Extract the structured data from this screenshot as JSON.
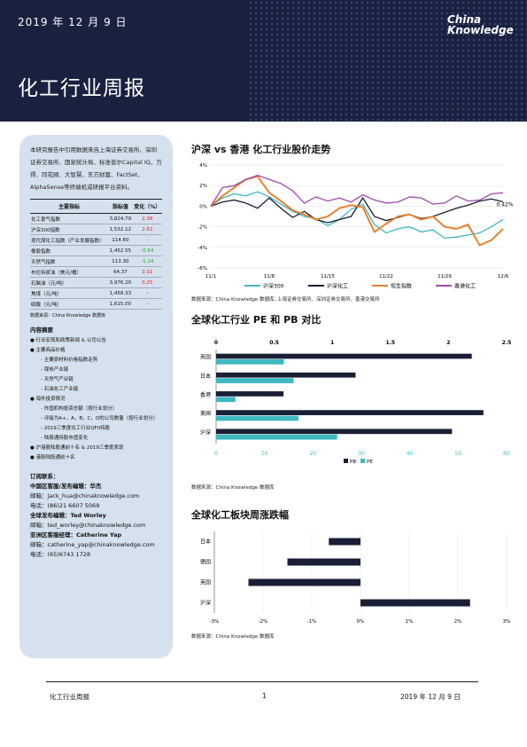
{
  "header": {
    "date": "2019 年 12 月 9 日",
    "title": "化工行业周报",
    "logo_line1": "China",
    "logo_line2": "Knowledge"
  },
  "sidebar": {
    "intro": "本研究报告中引用数据来自上海证券交易所、深圳证券交易所、国家统计局、标准普尔Capital IQ、万得、同花顺、大智慧、东方财富、FactSet、AlphaSense等终端机或研报平台资料。",
    "table_headers": [
      "主要指标",
      "指标值",
      "变化（%）"
    ],
    "table_rows": [
      [
        "化工景气指数",
        "3,824.79",
        "2.38"
      ],
      [
        "沪深300指数",
        "1,532.12",
        "2.62"
      ],
      [
        "现代煤化工指数（产业发展指数）",
        "114.60",
        "-"
      ],
      [
        "橡胶指数",
        "1,452.55",
        "-0.54"
      ],
      [
        "天然气指数",
        "113.30",
        "-1.14"
      ],
      [
        "布伦特原油（美元/桶）",
        "64.37",
        "3.11"
      ],
      [
        "石脑油（元/吨）",
        "3,976.20",
        "0.25"
      ],
      [
        "焦煤（元/吨）",
        "1,458.33",
        "-"
      ],
      [
        "硫酸（元/吨）",
        "1,615.00",
        "-"
      ]
    ],
    "table_source": "数据来源：China Knowledge 数据库",
    "contents_title": "内容摘要",
    "contents": [
      {
        "t": "● 行业宏观和政策新闻 & 公司公告",
        "s": false
      },
      {
        "t": "● 主要商品价格",
        "s": false
      },
      {
        "t": "- 主要原材料价格指数走势",
        "s": true
      },
      {
        "t": "- 煤炭产业链",
        "s": true
      },
      {
        "t": "- 天然气产业链",
        "s": true
      },
      {
        "t": "- 石油化工产业链",
        "s": true
      },
      {
        "t": "● 海外投资情况",
        "s": false
      },
      {
        "t": "- 外国机构投资总额（按行业划分）",
        "s": true
      },
      {
        "t": "- 评级为A+，A，B，C，D的公司数量（按行业划分）",
        "s": true
      },
      {
        "t": "- 2019三季度化工行业QFII持股",
        "s": true
      },
      {
        "t": "- 陆股通持股市值变化",
        "s": true
      },
      {
        "t": "● 沪港股陆股通前十名 & 2019三季度表现",
        "s": false
      },
      {
        "t": "● 港股陆股通前十名",
        "s": false
      }
    ],
    "contact_title": "订阅联系：",
    "contacts": [
      {
        "role": "中国区客服/发布编辑：华杰",
        "email": "邮箱：jack_hua@chinaknowledge.com",
        "phone": "电话：(86)21 6607 5069"
      },
      {
        "role": "全球发布编辑：Ted Worley",
        "email": "邮箱：ted_worley@chinaknowledge.com",
        "phone": ""
      },
      {
        "role": "亚洲区客服经理：Catherine Yap",
        "email": "邮箱：catherine_yap@chinaknowledge.com",
        "phone": "电话：(65)6743 1728"
      }
    ]
  },
  "chart1_title": "沪深 vs 香港 化工行业股价走势",
  "chart1_source": "数据来源：China Knowledge 数据库, 上海证券交易所、深圳证券交易所、香港交易所",
  "chart2_title": "全球化工行业 PE 和 PB 对比",
  "chart2_source": "数据来源：China Knowledge 数据库",
  "chart3_title": "全球化工板块周涨跌幅",
  "chart3_source": "数据来源：China Knowledge 数据库",
  "chart_data": [
    {
      "type": "line",
      "x": [
        "11/1",
        "11/4",
        "11/5",
        "11/6",
        "11/7",
        "11/8",
        "11/11",
        "11/12",
        "11/13",
        "11/14",
        "11/15",
        "11/18",
        "11/19",
        "11/20",
        "11/21",
        "11/22",
        "11/25",
        "11/26",
        "11/27",
        "11/28",
        "11/29",
        "12/2",
        "12/3",
        "12/4",
        "12/5",
        "12/6"
      ],
      "xticks": [
        "11/1",
        "11/8",
        "11/15",
        "11/22",
        "11/29",
        "12/6"
      ],
      "ylim": [
        -6,
        4
      ],
      "yticks": [
        -6,
        -4,
        -2,
        0,
        2,
        4
      ],
      "ysuffix": "%",
      "end_label": "0.42%",
      "series": [
        {
          "name": "沪深300",
          "color": "#3fb8c0",
          "values": [
            0,
            0.8,
            1.2,
            1.0,
            1.4,
            0.9,
            0.2,
            -0.5,
            -1.0,
            -1.2,
            -1.9,
            -1.3,
            -0.3,
            0.2,
            -1.8,
            -2.6,
            -2.2,
            -2.0,
            -2.5,
            -2.3,
            -3.1,
            -3.0,
            -2.8,
            -2.6,
            -2.0,
            -1.3
          ]
        },
        {
          "name": "沪深化工",
          "color": "#1a1f36",
          "values": [
            0,
            0.4,
            0.6,
            0.3,
            -0.2,
            0.8,
            -0.2,
            -1.1,
            -0.5,
            -1.3,
            -1.6,
            -1.3,
            -1.0,
            0.8,
            -1.0,
            -1.4,
            -1.1,
            -0.8,
            -1.2,
            -1.0,
            -0.6,
            -0.2,
            0.1,
            0.5,
            0.7,
            0.42
          ]
        },
        {
          "name": "恒生指数",
          "color": "#e5822f",
          "values": [
            0,
            1.0,
            1.8,
            2.6,
            2.9,
            1.3,
            0.5,
            -0.4,
            -0.8,
            -1.3,
            -1.0,
            -0.2,
            0.1,
            -0.1,
            -2.5,
            -1.7,
            -1.0,
            -0.8,
            -1.3,
            -1.0,
            -2.0,
            -2.2,
            -1.8,
            -3.8,
            -3.3,
            -2.2
          ]
        },
        {
          "name": "香港化工",
          "color": "#a04ab0",
          "values": [
            0,
            1.8,
            2.0,
            2.6,
            3.0,
            2.6,
            2.2,
            1.5,
            0.3,
            0.9,
            0.5,
            0.8,
            0.4,
            1.1,
            0.6,
            0.3,
            0.4,
            0.9,
            0.8,
            0.2,
            0.3,
            1.0,
            0.5,
            0.6,
            1.2,
            1.3
          ]
        }
      ]
    },
    {
      "type": "bar",
      "categories": [
        "英国",
        "日本",
        "香港",
        "美国",
        "沪深"
      ],
      "series": [
        {
          "name": "PB",
          "color": "#1a1f36",
          "axis": "top",
          "values": [
            2.2,
            1.2,
            0.58,
            2.3,
            2.03
          ]
        },
        {
          "name": "PE",
          "color": "#3fb8c0",
          "axis": "bottom",
          "values": [
            14,
            16,
            4,
            17,
            25
          ]
        }
      ],
      "top_ticks": [
        "0",
        "0.5",
        "1",
        "1.5",
        "2",
        "2.5"
      ],
      "top_lim": [
        0,
        2.5
      ],
      "bottom_ticks": [
        "0",
        "10",
        "20",
        "30",
        "40",
        "50",
        "60"
      ],
      "bottom_lim": [
        0,
        60
      ]
    },
    {
      "type": "bar",
      "categories": [
        "日本",
        "德国",
        "英国",
        "沪深"
      ],
      "values": [
        -0.65,
        -1.5,
        -2.3,
        2.25
      ],
      "color": "#1a1f36",
      "xlim": [
        -3,
        3
      ],
      "xticks": [
        "-3%",
        "-2%",
        "-1%",
        "0%",
        "1%",
        "2%",
        "3%"
      ]
    }
  ],
  "footer": {
    "left": "化工行业周报",
    "page": "1",
    "right": "2019 年 12 月 9 日"
  }
}
